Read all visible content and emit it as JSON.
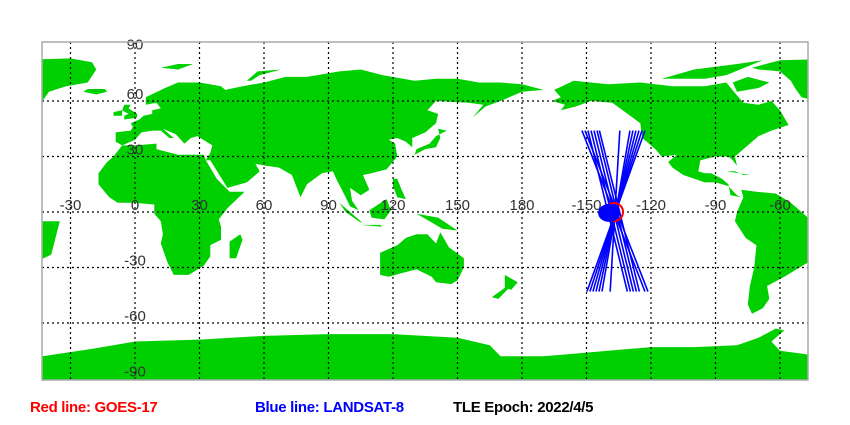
{
  "chart_data": {
    "type": "map",
    "projection": "equirectangular",
    "center_longitude": 135,
    "colors": {
      "land": "#00d000",
      "ocean": "#ffffff",
      "grid": "#000000",
      "goes": "#ff0000",
      "landsat": "#0000ff"
    },
    "lon_ticks": [
      "-30",
      "0",
      "30",
      "60",
      "90",
      "120",
      "150",
      "180",
      "-150",
      "-120",
      "-90",
      "-60"
    ],
    "lat_ticks": [
      "90",
      "60",
      "30",
      "0",
      "-30",
      "-60",
      "-90"
    ],
    "grid": true,
    "satellites": [
      {
        "name": "GOES-17",
        "color": "#ff0000",
        "position": {
          "lon": -137.2,
          "lat": 0
        }
      },
      {
        "name": "LANDSAT-8",
        "color": "#0000ff",
        "position": {
          "lon": -139.5,
          "lat": -0.5
        },
        "tracks": [
          {
            "from": [
              -152.1,
              44
            ],
            "to": [
              -122.8,
              -43
            ]
          },
          {
            "from": [
              -150.7,
              44
            ],
            "to": [
              -121.4,
              -43
            ]
          },
          {
            "from": [
              -149.3,
              44
            ],
            "to": [
              -131.0,
              -43
            ]
          },
          {
            "from": [
              -147.9,
              44
            ],
            "to": [
              -129.6,
              -43
            ]
          },
          {
            "from": [
              -146.5,
              44
            ],
            "to": [
              -128.2,
              -43
            ]
          },
          {
            "from": [
              -145.1,
              44
            ],
            "to": [
              -126.8,
              -43
            ]
          },
          {
            "from": [
              -144.0,
              44
            ],
            "to": [
              -125.4,
              -43
            ]
          },
          {
            "from": [
              -122.8,
              44
            ],
            "to": [
              -149.8,
              -43
            ]
          },
          {
            "from": [
              -124.2,
              44
            ],
            "to": [
              -148.4,
              -43
            ]
          },
          {
            "from": [
              -125.6,
              44
            ],
            "to": [
              -147.0,
              -43
            ]
          },
          {
            "from": [
              -127.0,
              44
            ],
            "to": [
              -145.6,
              -43
            ]
          },
          {
            "from": [
              -128.4,
              44
            ],
            "to": [
              -144.2,
              -43
            ]
          },
          {
            "from": [
              -129.8,
              44
            ],
            "to": [
              -142.8,
              -43
            ]
          },
          {
            "from": [
              -134.5,
              44
            ],
            "to": [
              -139.0,
              -43
            ]
          }
        ]
      }
    ]
  },
  "legend": {
    "red": "Red line: GOES-17",
    "blue": "Blue line: LANDSAT-8",
    "epoch": "TLE Epoch: 2022/4/5"
  }
}
